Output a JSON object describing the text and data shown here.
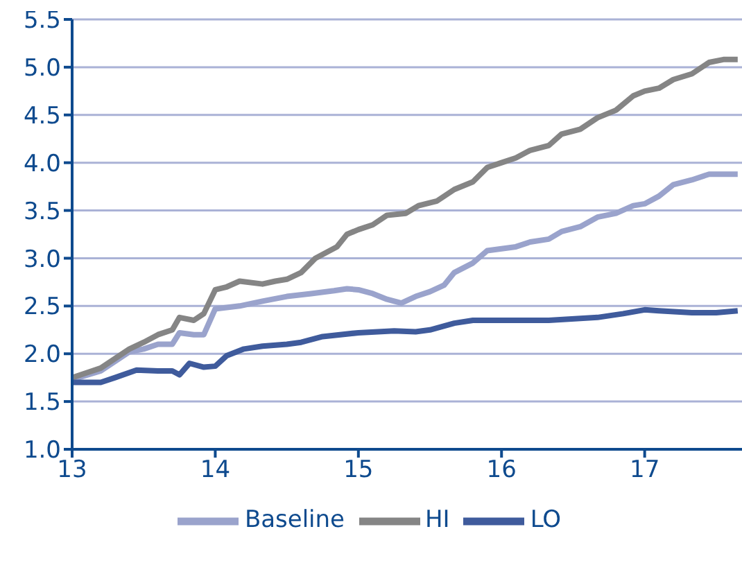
{
  "chart_data": {
    "type": "line",
    "xlim": [
      13,
      17.68
    ],
    "xticks": [
      13,
      14,
      15,
      16,
      17
    ],
    "ylim": [
      1.0,
      5.5
    ],
    "yticks": [
      {
        "value": 1.0,
        "label": "1.0"
      },
      {
        "value": 1.5,
        "label": "1.5"
      },
      {
        "value": 2.0,
        "label": "2.0"
      },
      {
        "value": 2.5,
        "label": "2.5"
      },
      {
        "value": 3.0,
        "label": "3.0"
      },
      {
        "value": 3.5,
        "label": "3.5"
      },
      {
        "value": 4.0,
        "label": "4.0"
      },
      {
        "value": 4.5,
        "label": "4.5"
      },
      {
        "value": 5.0,
        "label": "5.0"
      },
      {
        "value": 5.5,
        "label": "5.5"
      }
    ],
    "grid": "y",
    "legend": "bottom",
    "marker": "none",
    "line_style": "solid",
    "series": [
      {
        "name": "Baseline",
        "color": "#9aa3cc",
        "x": [
          13,
          13.2,
          13.3,
          13.4,
          13.5,
          13.6,
          13.7,
          13.75,
          13.85,
          13.92,
          14.0,
          14.17,
          14.33,
          14.5,
          14.67,
          14.83,
          14.92,
          15.0,
          15.1,
          15.2,
          15.3,
          15.4,
          15.5,
          15.6,
          15.67,
          15.8,
          15.9,
          16.0,
          16.1,
          16.2,
          16.33,
          16.42,
          16.55,
          16.67,
          16.8,
          16.92,
          17.0,
          17.1,
          17.2,
          17.33,
          17.45,
          17.65
        ],
        "values": [
          1.73,
          1.82,
          1.92,
          2.02,
          2.05,
          2.1,
          2.1,
          2.22,
          2.2,
          2.2,
          2.47,
          2.5,
          2.55,
          2.6,
          2.63,
          2.66,
          2.68,
          2.67,
          2.63,
          2.57,
          2.53,
          2.6,
          2.65,
          2.72,
          2.85,
          2.95,
          3.08,
          3.1,
          3.12,
          3.17,
          3.2,
          3.28,
          3.33,
          3.43,
          3.47,
          3.55,
          3.57,
          3.65,
          3.77,
          3.82,
          3.88,
          3.88
        ]
      },
      {
        "name": "HI",
        "color": "#858585",
        "x": [
          13,
          13.1,
          13.2,
          13.3,
          13.4,
          13.5,
          13.6,
          13.7,
          13.75,
          13.85,
          13.92,
          14.0,
          14.08,
          14.17,
          14.33,
          14.42,
          14.5,
          14.6,
          14.7,
          14.85,
          14.92,
          15.0,
          15.1,
          15.2,
          15.33,
          15.42,
          15.55,
          15.67,
          15.8,
          15.9,
          16.0,
          16.1,
          16.2,
          16.33,
          16.42,
          16.55,
          16.67,
          16.8,
          16.92,
          17.0,
          17.1,
          17.2,
          17.33,
          17.45,
          17.55,
          17.65
        ],
        "values": [
          1.75,
          1.8,
          1.85,
          1.95,
          2.05,
          2.12,
          2.2,
          2.25,
          2.38,
          2.35,
          2.42,
          2.67,
          2.7,
          2.76,
          2.73,
          2.76,
          2.78,
          2.85,
          3.0,
          3.12,
          3.25,
          3.3,
          3.35,
          3.45,
          3.47,
          3.55,
          3.6,
          3.72,
          3.8,
          3.95,
          4.0,
          4.05,
          4.13,
          4.18,
          4.3,
          4.35,
          4.47,
          4.55,
          4.7,
          4.75,
          4.78,
          4.87,
          4.93,
          5.05,
          5.08,
          5.08
        ]
      },
      {
        "name": "LO",
        "color": "#3f5b9c",
        "x": [
          13,
          13.2,
          13.3,
          13.45,
          13.6,
          13.7,
          13.75,
          13.82,
          13.92,
          14.0,
          14.08,
          14.2,
          14.33,
          14.5,
          14.6,
          14.75,
          15.0,
          15.25,
          15.4,
          15.5,
          15.67,
          15.8,
          16.0,
          16.33,
          16.67,
          16.85,
          17.0,
          17.1,
          17.33,
          17.5,
          17.65
        ],
        "values": [
          1.7,
          1.7,
          1.75,
          1.83,
          1.82,
          1.82,
          1.78,
          1.9,
          1.86,
          1.87,
          1.98,
          2.05,
          2.08,
          2.1,
          2.12,
          2.18,
          2.22,
          2.24,
          2.23,
          2.25,
          2.32,
          2.35,
          2.35,
          2.35,
          2.38,
          2.42,
          2.46,
          2.45,
          2.43,
          2.43,
          2.45
        ]
      }
    ]
  }
}
